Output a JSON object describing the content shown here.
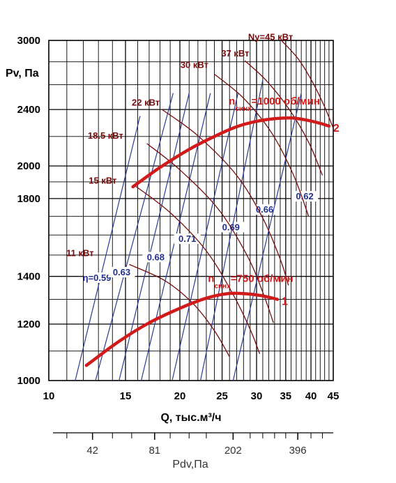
{
  "chart_data": {
    "type": "line",
    "x_scale": "log",
    "y_scale": "log",
    "xlim": [
      10,
      45
    ],
    "ylim": [
      1000,
      3000
    ],
    "xlabel": "Q, тыс.м³/ч",
    "ylabel": "Pv, Па",
    "grid": true,
    "x_ticks": [
      {
        "value": 10,
        "label": "10"
      },
      {
        "value": 15,
        "label": "15"
      },
      {
        "value": 20,
        "label": "20"
      },
      {
        "value": 25,
        "label": "25"
      },
      {
        "value": 30,
        "label": "30"
      },
      {
        "value": 35,
        "label": "35"
      },
      {
        "value": 40,
        "label": "40"
      },
      {
        "value": 45,
        "label": "45"
      }
    ],
    "y_ticks": [
      {
        "value": 1000,
        "label": "1000"
      },
      {
        "value": 1200,
        "label": "1200"
      },
      {
        "value": 1400,
        "label": "1400"
      },
      {
        "value": 1600,
        "label": ""
      },
      {
        "value": 1800,
        "label": "1800"
      },
      {
        "value": 2000,
        "label": "2000"
      },
      {
        "value": 2400,
        "label": "2400"
      },
      {
        "value": 3000,
        "label": "3000"
      }
    ],
    "fan_curves": [
      {
        "id": "1",
        "label_main": "n",
        "label_sub": "синх",
        "label_rest": "=750 об/мин",
        "points": [
          [
            12.2,
            1050
          ],
          [
            14.5,
            1135
          ],
          [
            17,
            1205
          ],
          [
            20,
            1263
          ],
          [
            23,
            1305
          ],
          [
            26,
            1325
          ],
          [
            29,
            1322
          ],
          [
            31.5,
            1312
          ],
          [
            33.5,
            1300
          ]
        ]
      },
      {
        "id": "2",
        "label_main": "n",
        "label_sub": "синх",
        "label_rest": "=1000 об/мин",
        "points": [
          [
            15.6,
            1870
          ],
          [
            18,
            1990
          ],
          [
            21,
            2110
          ],
          [
            24,
            2200
          ],
          [
            27,
            2270
          ],
          [
            30,
            2310
          ],
          [
            33,
            2330
          ],
          [
            36,
            2335
          ],
          [
            39,
            2320
          ],
          [
            42,
            2295
          ],
          [
            44,
            2275
          ]
        ]
      }
    ],
    "power_lines": [
      {
        "label": "11 кВт",
        "points": [
          [
            15.3,
            1455
          ],
          [
            18.5,
            1380
          ],
          [
            21.5,
            1280
          ],
          [
            24,
            1175
          ],
          [
            26,
            1080
          ]
        ]
      },
      {
        "label": "15 кВт",
        "points": [
          [
            15.7,
            1880
          ],
          [
            19,
            1720
          ],
          [
            23,
            1520
          ],
          [
            26.5,
            1320
          ],
          [
            29,
            1180
          ],
          [
            30.5,
            1090
          ]
        ]
      },
      {
        "label": "18.5 кВт",
        "points": [
          [
            16.8,
            2150
          ],
          [
            20,
            1975
          ],
          [
            24.5,
            1740
          ],
          [
            28.5,
            1500
          ],
          [
            31,
            1330
          ],
          [
            32.8,
            1205
          ]
        ]
      },
      {
        "label": "22 кВт",
        "points": [
          [
            18.2,
            2400
          ],
          [
            22,
            2205
          ],
          [
            27,
            1940
          ],
          [
            31,
            1690
          ],
          [
            34,
            1480
          ],
          [
            35.5,
            1360
          ]
        ]
      },
      {
        "label": "30 кВт",
        "points": [
          [
            24,
            2690
          ],
          [
            28,
            2490
          ],
          [
            32.5,
            2225
          ],
          [
            36.5,
            1940
          ],
          [
            39.5,
            1700
          ]
        ]
      },
      {
        "label": "37 кВт",
        "points": [
          [
            28.2,
            2810
          ],
          [
            31.5,
            2640
          ],
          [
            35.5,
            2410
          ],
          [
            39.5,
            2160
          ],
          [
            42.5,
            1940
          ]
        ]
      },
      {
        "label": "Ny=45 кВт",
        "points": [
          [
            34.3,
            2995
          ],
          [
            37.5,
            2820
          ],
          [
            40.5,
            2610
          ],
          [
            43,
            2420
          ],
          [
            45,
            2260
          ]
        ]
      }
    ],
    "efficiency_lines": [
      {
        "label": "η=0.59",
        "points": [
          [
            11.5,
            1000
          ],
          [
            16.2,
            2350
          ]
        ]
      },
      {
        "label": "0.63",
        "points": [
          [
            12.8,
            1000
          ],
          [
            19.3,
            2530
          ]
        ]
      },
      {
        "label": "0.68",
        "points": [
          [
            14.5,
            1000
          ],
          [
            21,
            2530
          ]
        ]
      },
      {
        "label": "0.71",
        "points": [
          [
            16.3,
            1000
          ],
          [
            23.5,
            2530
          ]
        ]
      },
      {
        "label": "0.69",
        "points": [
          [
            19.2,
            1000
          ],
          [
            27.2,
            2530
          ]
        ]
      },
      {
        "label": "0.66",
        "points": [
          [
            22.3,
            1000
          ],
          [
            31,
            2640
          ]
        ]
      },
      {
        "label": "0.62",
        "points": [
          [
            26.5,
            1000
          ],
          [
            38,
            2530
          ]
        ]
      }
    ],
    "pdv_axis": {
      "title": "Pdv,Па",
      "ticks": [
        {
          "q": 12.6,
          "label": "42"
        },
        {
          "q": 17.5,
          "label": "81"
        },
        {
          "q": 26.5,
          "label": "202"
        },
        {
          "q": 37.3,
          "label": "396"
        }
      ]
    }
  }
}
